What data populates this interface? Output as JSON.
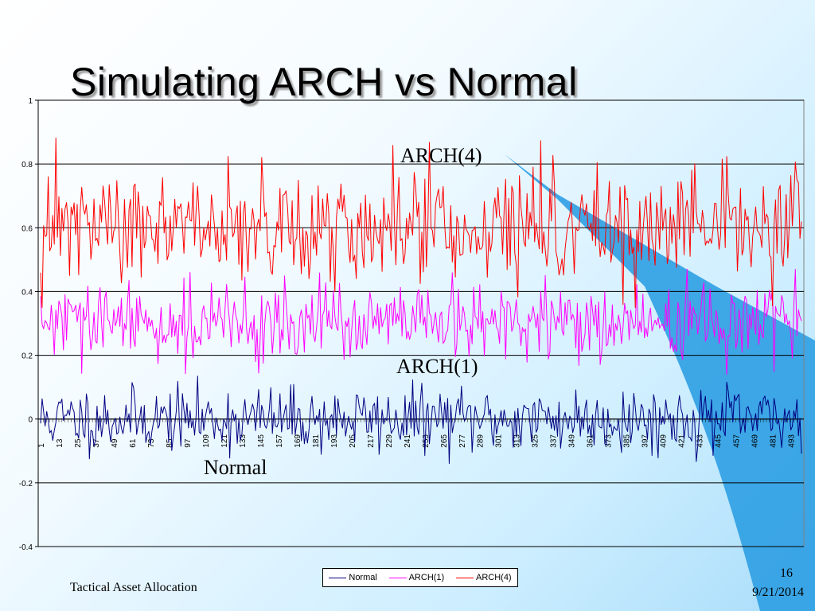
{
  "slide": {
    "title": "Simulating ARCH vs Normal",
    "footer": "Tactical Asset Allocation",
    "page_number": "16",
    "date": "9/21/2014"
  },
  "colors": {
    "normal": "#000080",
    "arch1": "#ff00ff",
    "arch4": "#ff0000",
    "callout": "#2e9fe3"
  },
  "chart_data": {
    "type": "line",
    "title": "Simulating ARCH vs Normal",
    "xlabel": "",
    "ylabel": "",
    "ylim": [
      -0.4,
      1
    ],
    "yticks": [
      "1",
      "0.8",
      "0.6",
      "0.4",
      "0.2",
      "0",
      "-0.2",
      "-0.4"
    ],
    "xrange": [
      1,
      500
    ],
    "xtick_labels": [
      "1",
      "13",
      "25",
      "37",
      "49",
      "61",
      "73",
      "85",
      "97",
      "109",
      "121",
      "133",
      "145",
      "157",
      "169",
      "181",
      "193",
      "205",
      "217",
      "229",
      "241",
      "253",
      "265",
      "277",
      "289",
      "301",
      "313",
      "325",
      "337",
      "349",
      "361",
      "373",
      "385",
      "397",
      "409",
      "421",
      "433",
      "445",
      "457",
      "469",
      "481",
      "493"
    ],
    "grid": "horizontal",
    "legend_position": "bottom",
    "series": [
      {
        "name": "Normal",
        "color_key": "normal",
        "mean": 0.0,
        "amplitude": 0.09,
        "min": -0.2,
        "max": 0.19
      },
      {
        "name": "ARCH(1)",
        "color_key": "arch1",
        "mean": 0.3,
        "amplitude": 0.11,
        "min": 0.14,
        "max": 0.47
      },
      {
        "name": "ARCH(4)",
        "color_key": "arch4",
        "mean": 0.6,
        "amplitude": 0.16,
        "min": 0.35,
        "max": 0.9
      }
    ],
    "annotations": [
      {
        "text": "ARCH(4)",
        "series": "ARCH(4)"
      },
      {
        "text": "ARCH(1)",
        "series": "ARCH(1)"
      },
      {
        "text": "Normal",
        "series": "Normal"
      }
    ]
  }
}
